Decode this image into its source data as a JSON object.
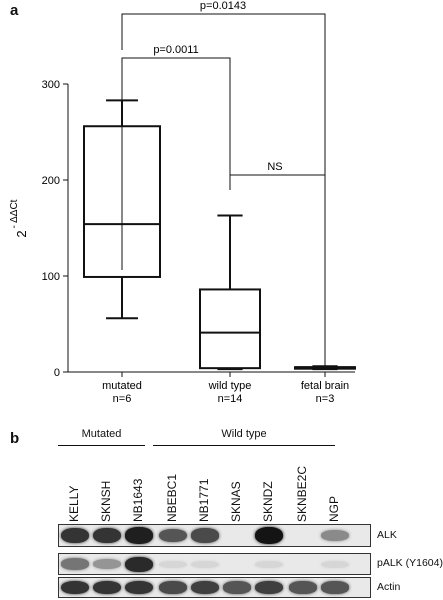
{
  "panel_a_label": "a",
  "panel_b_label": "b",
  "chart_data": {
    "type": "box",
    "ylabel": "2 - ΔΔCt",
    "ylabel_base": "2",
    "ylabel_exp": "- ΔΔCt",
    "ylim": [
      0,
      300
    ],
    "yticks": [
      "0",
      "100",
      "200",
      "300"
    ],
    "categories": [
      "mutated",
      "wild type",
      "fetal brain"
    ],
    "counts": [
      "n=6",
      "n=14",
      "n=3"
    ],
    "boxes": [
      {
        "name": "mutated",
        "min": 56,
        "q1": 99,
        "median": 154,
        "q3": 256,
        "max": 283
      },
      {
        "name": "wild type",
        "min": 3,
        "q1": 4,
        "median": 41,
        "q3": 86,
        "max": 163
      },
      {
        "name": "fetal brain",
        "min": 3,
        "q1": 4,
        "median": 5,
        "q3": 5,
        "max": 6
      }
    ],
    "comparisons": [
      {
        "from": "mutated",
        "to": "wild type",
        "label": "p=0.0011"
      },
      {
        "from": "wild type",
        "to": "fetal brain",
        "label": "NS"
      },
      {
        "from": "mutated",
        "to": "fetal brain",
        "label": "p=0.0143"
      }
    ]
  },
  "blot": {
    "groups": [
      {
        "label": "Mutated",
        "lanes": 3
      },
      {
        "label": "Wild type",
        "lanes": 6
      }
    ],
    "lanes": [
      "KELLY",
      "SKNSH",
      "NB1643",
      "NBEBC1",
      "NB1771",
      "SKNAS",
      "SKNDZ",
      "SKNBE2C",
      "NGP"
    ],
    "rows": [
      {
        "label": "ALK",
        "intensity": [
          0.85,
          0.85,
          0.95,
          0.7,
          0.75,
          0.0,
          1.0,
          0.0,
          0.45
        ]
      },
      {
        "label": "pALK (Y1604)",
        "intensity": [
          0.55,
          0.4,
          0.9,
          0.1,
          0.1,
          0.0,
          0.1,
          0.0,
          0.1
        ]
      },
      {
        "label": "Actin",
        "intensity": [
          0.85,
          0.85,
          0.85,
          0.75,
          0.8,
          0.7,
          0.8,
          0.7,
          0.7
        ]
      }
    ]
  }
}
